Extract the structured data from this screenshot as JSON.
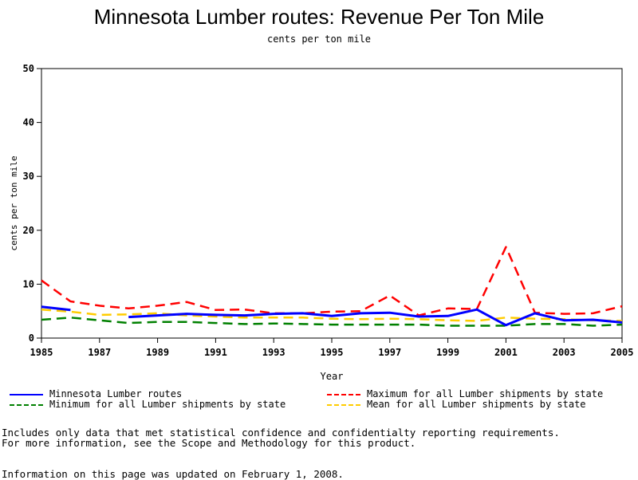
{
  "chart_data": {
    "type": "line",
    "title": "Minnesota Lumber routes: Revenue Per Ton Mile",
    "subtitle": "cents per ton mile",
    "xlabel": "Year",
    "ylabel": "cents per ton mile",
    "xlim": [
      1985,
      2005
    ],
    "ylim": [
      0,
      50
    ],
    "x_ticks": [
      "1985",
      "1987",
      "1989",
      "1991",
      "1993",
      "1995",
      "1997",
      "1999",
      "2001",
      "2003",
      "2005"
    ],
    "y_ticks": [
      "0",
      "10",
      "20",
      "30",
      "40",
      "50"
    ],
    "grid": false,
    "legend_position": "bottom",
    "x": [
      1985,
      1986,
      1987,
      1988,
      1989,
      1990,
      1991,
      1992,
      1993,
      1994,
      1995,
      1996,
      1997,
      1998,
      1999,
      2000,
      2001,
      2002,
      2003,
      2004,
      2005
    ],
    "series": [
      {
        "name": "Minnesota Lumber routes",
        "color": "#0000ff",
        "dash": "solid",
        "values": [
          5.8,
          5.2,
          null,
          3.9,
          4.2,
          4.5,
          4.3,
          4.2,
          4.5,
          4.6,
          4.1,
          4.6,
          4.7,
          4.0,
          4.1,
          5.3,
          2.4,
          4.6,
          3.3,
          3.4,
          2.9
        ]
      },
      {
        "name": "Maximum for all Lumber shipments by state",
        "color": "#ff0000",
        "dash": "dashed",
        "values": [
          10.7,
          6.8,
          6.0,
          5.5,
          6.0,
          6.7,
          5.2,
          5.3,
          4.6,
          4.6,
          4.9,
          5.0,
          7.9,
          4.2,
          5.5,
          5.4,
          16.9,
          4.7,
          4.5,
          4.6,
          5.9
        ]
      },
      {
        "name": "Minimum for all Lumber shipments by state",
        "color": "#008000",
        "dash": "dashed",
        "values": [
          3.4,
          3.8,
          3.3,
          2.8,
          3.0,
          3.0,
          2.8,
          2.6,
          2.7,
          2.6,
          2.5,
          2.5,
          2.5,
          2.5,
          2.3,
          2.3,
          2.3,
          2.6,
          2.6,
          2.3,
          2.5
        ]
      },
      {
        "name": "Mean for all Lumber shipments by state",
        "color": "#ffcc00",
        "dash": "dashed",
        "values": [
          5.3,
          4.9,
          4.3,
          4.4,
          4.6,
          4.2,
          4.0,
          3.8,
          3.8,
          3.8,
          3.6,
          3.5,
          3.6,
          3.5,
          3.3,
          3.2,
          3.8,
          3.6,
          3.5,
          3.3,
          3.2
        ]
      }
    ]
  },
  "notes": {
    "line1": "Includes only data that met statistical confidence and confidentialty reporting requirements.",
    "line2": "For more information, see the Scope and Methodology for this product.",
    "line3": "Information on this page was updated on February 1, 2008."
  }
}
